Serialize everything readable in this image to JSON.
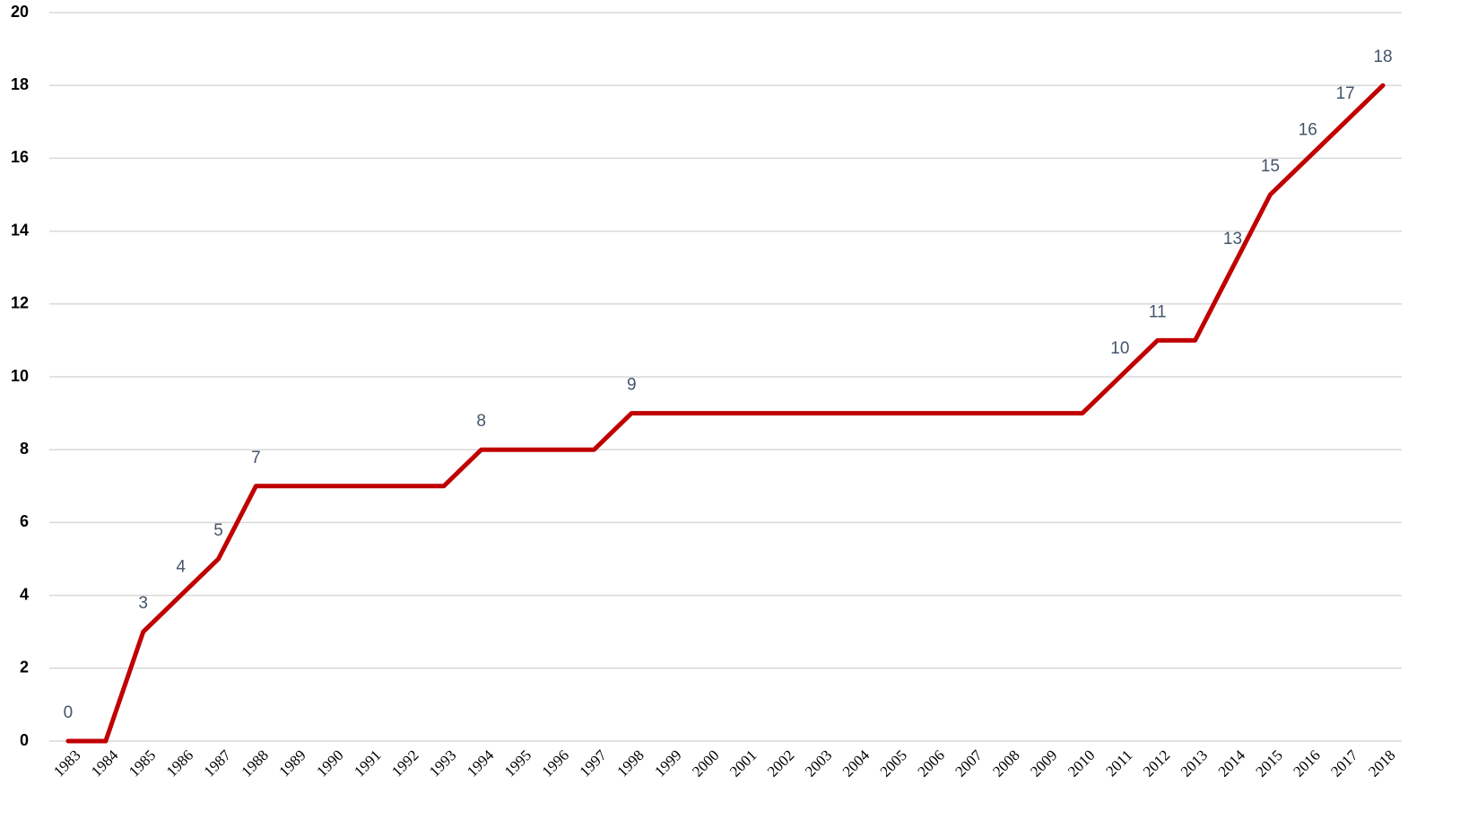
{
  "chart_data": {
    "type": "line",
    "categories": [
      "1983",
      "1984",
      "1985",
      "1986",
      "1987",
      "1988",
      "1989",
      "1990",
      "1991",
      "1992",
      "1993",
      "1994",
      "1995",
      "1996",
      "1997",
      "1998",
      "1999",
      "2000",
      "2001",
      "2002",
      "2003",
      "2004",
      "2005",
      "2006",
      "2007",
      "2008",
      "2009",
      "2010",
      "2011",
      "2012",
      "2013",
      "2014",
      "2015",
      "2016",
      "2017",
      "2018"
    ],
    "series": [
      {
        "color": "#c00000",
        "values": [
          0,
          0,
          3,
          4,
          5,
          7,
          7,
          7,
          7,
          7,
          7,
          8,
          8,
          8,
          8,
          9,
          9,
          9,
          9,
          9,
          9,
          9,
          9,
          9,
          9,
          9,
          9,
          9,
          10,
          11,
          11,
          13,
          15,
          16,
          17,
          18
        ],
        "value_labels": [
          "0",
          null,
          "3",
          "4",
          "5",
          "7",
          null,
          null,
          null,
          null,
          null,
          "8",
          null,
          null,
          null,
          "9",
          null,
          null,
          null,
          null,
          null,
          null,
          null,
          null,
          null,
          null,
          null,
          null,
          "10",
          "11",
          null,
          "13",
          "15",
          "16",
          "17",
          "18"
        ]
      }
    ],
    "ylim": [
      0,
      20
    ],
    "yticks": [
      0,
      2,
      4,
      6,
      8,
      10,
      12,
      14,
      16,
      18,
      20
    ],
    "grid": true
  }
}
